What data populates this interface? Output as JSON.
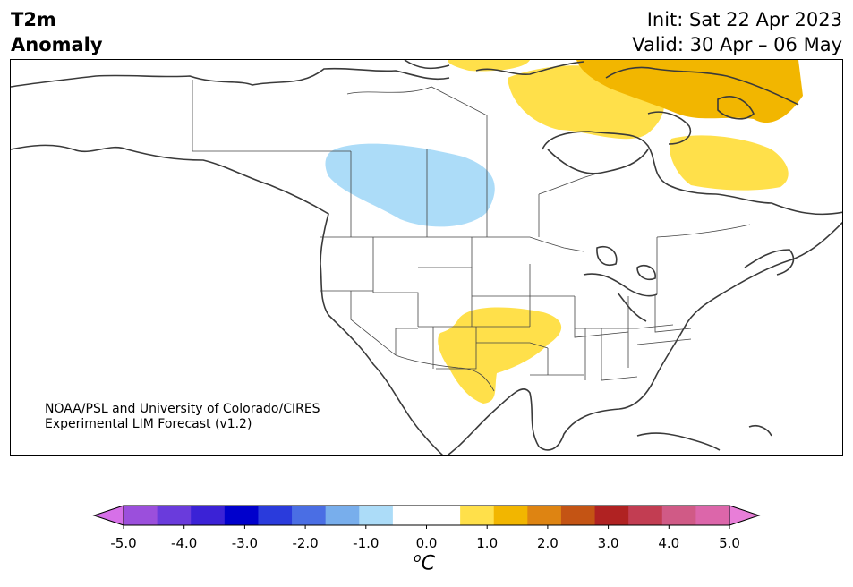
{
  "title": {
    "line1": "T2m",
    "line2": "Anomaly"
  },
  "forecast": {
    "init": "Init: Sat 22 Apr 2023",
    "valid": "Valid: 30 Apr – 06 May"
  },
  "credit": {
    "line1": "NOAA/PSL and University of Colorado/CIRES",
    "line2": "Experimental LIM Forecast (v1.2)"
  },
  "colorbar": {
    "unit_symbol": "o",
    "unit_letter": "C",
    "tick_labels": [
      "-5.0",
      "-4.0",
      "-3.0",
      "-2.0",
      "-1.0",
      "0.0",
      "1.0",
      "2.0",
      "3.0",
      "4.0",
      "5.0"
    ],
    "colors": [
      "#9b4fdc",
      "#6a3bdc",
      "#3b22d6",
      "#0000cc",
      "#2a3bdc",
      "#4a6ee4",
      "#78aeec",
      "#acdcf8",
      "#ffffff",
      "#ffffff",
      "#ffe04a",
      "#f2b600",
      "#de8412",
      "#c45414",
      "#b02222",
      "#c23d52",
      "#d05a86",
      "#dc66aa"
    ],
    "low_extend_color": "#d670e8",
    "high_extend_color": "#e87ed8"
  },
  "map_colors": {
    "coast": "#3a3a3a",
    "border": "#444444",
    "cold_light": "#acdcf8",
    "warm_light": "#ffe04a",
    "warm_medium": "#f2b600"
  }
}
